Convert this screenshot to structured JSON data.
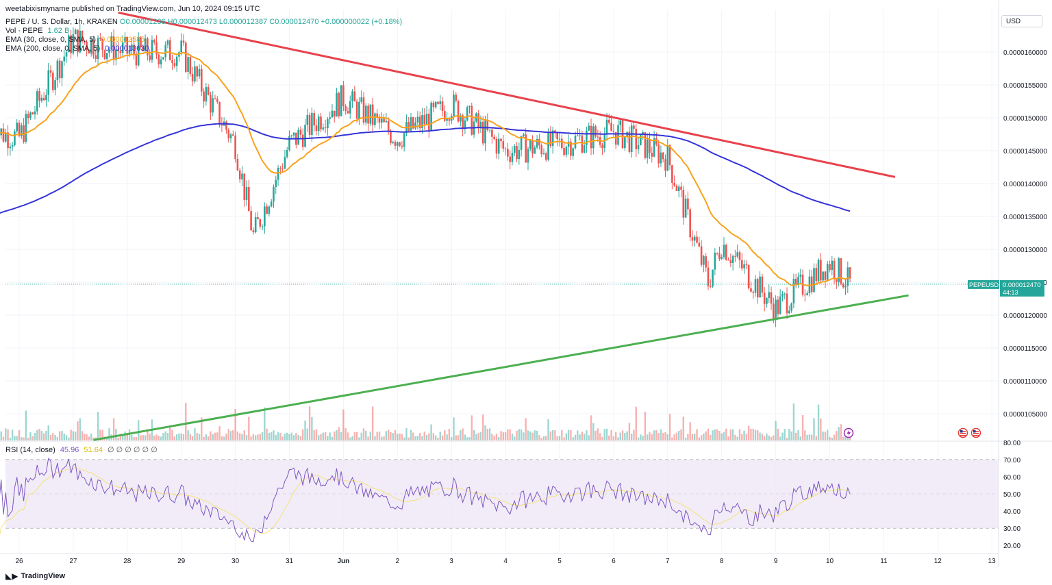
{
  "header": {
    "publisher": "weetabixismyname published on TradingView.com, Jun 10, 2024 09:15 UTC",
    "symbol": "PEPE / U. S. Dollar, 1h, KRAKEN",
    "ohlc": "O0.00001236 H0.000012473 L0.000012387 C0.000012470 +0.000000022 (+0.18%)",
    "vol_label": "Vol · PEPE",
    "vol_value": "1.62 B",
    "ema30_label": "EMA (30, close, 0, SMA, 5)",
    "ema30_value": "0.000012585",
    "ema200_label": "EMA (200, close, 0, SMA, 5)",
    "ema200_value": "0.000013630",
    "rsi_label": "RSI (14, close)",
    "rsi_value": "45.96",
    "rsi_ma_value": "51.64",
    "rsi_extra": "∅ ∅ ∅ ∅ ∅ ∅"
  },
  "axis": {
    "currency": "USD",
    "price_ticks": [
      "0.0000160000",
      "0.0000155000",
      "0.0000150000",
      "0.0000145000",
      "0.0000140000",
      "0.0000135000",
      "0.0000130000",
      "0.0000125000",
      "0.0000120000",
      "0.0000115000",
      "0.0000110000",
      "0.0000105000"
    ],
    "rsi_ticks": [
      "80.00",
      "70.00",
      "60.00",
      "50.00",
      "40.00",
      "30.00",
      "20.00"
    ],
    "x_ticks": [
      "26",
      "27",
      "28",
      "29",
      "30",
      "31",
      "Jun",
      "2",
      "3",
      "4",
      "5",
      "6",
      "7",
      "8",
      "9",
      "10",
      "11",
      "12",
      "13"
    ],
    "symbol_tag": "PEPEUSD",
    "last_price": "0.000012470",
    "countdown": "44:13"
  },
  "footer": {
    "brand": "TradingView"
  },
  "colors": {
    "up": "#26a69a",
    "down": "#ef5350",
    "ema30": "#f7a21b",
    "ema200": "#3434d9",
    "resistance": "#e8424c",
    "support": "#4caf50",
    "rsi": "#7e57c2",
    "rsi_ma": "#f5e17a",
    "rsi_band": "#ede7f6"
  },
  "chart_data": {
    "type": "candlestick",
    "timeframe": "1h",
    "x_range": [
      "May 25",
      "Jun 13"
    ],
    "ylim": [
      1.02e-05,
      1.67e-05
    ],
    "price_key_points": [
      {
        "date": "May 26",
        "close": 1.47e-05
      },
      {
        "date": "May 27",
        "close": 1.62e-05
      },
      {
        "date": "May 28",
        "close": 1.6e-05
      },
      {
        "date": "May 29",
        "close": 1.6e-05
      },
      {
        "date": "May 30",
        "close": 1.46e-05
      },
      {
        "date": "May 30 08h",
        "close": 1.32e-05
      },
      {
        "date": "May 31",
        "close": 1.46e-05
      },
      {
        "date": "Jun 1",
        "close": 1.53e-05
      },
      {
        "date": "Jun 2",
        "close": 1.47e-05
      },
      {
        "date": "Jun 3",
        "close": 1.52e-05
      },
      {
        "date": "Jun 4",
        "close": 1.45e-05
      },
      {
        "date": "Jun 5",
        "close": 1.46e-05
      },
      {
        "date": "Jun 6",
        "close": 1.48e-05
      },
      {
        "date": "Jun 7",
        "close": 1.44e-05
      },
      {
        "date": "Jun 7 18h",
        "close": 1.25e-05
      },
      {
        "date": "Jun 8",
        "close": 1.31e-05
      },
      {
        "date": "Jun 9",
        "close": 1.21e-05
      },
      {
        "date": "Jun 10",
        "close": 1.28e-05
      },
      {
        "date": "Jun 10 09h",
        "close": 1.247e-05
      }
    ],
    "ema30_last": 1.2585e-05,
    "ema200_last": 1.363e-05,
    "trendlines": [
      {
        "name": "resistance",
        "from": {
          "date": "May 27 20h",
          "price": 1.66e-05
        },
        "to": {
          "date": "Jun 11 05h",
          "price": 1.41e-05
        }
      },
      {
        "name": "support",
        "from": {
          "date": "May 27 09h",
          "price": 1.01e-05
        },
        "to": {
          "date": "Jun 11 11h",
          "price": 1.23e-05
        }
      }
    ],
    "volume_last": "1.62 B",
    "rsi": {
      "last": 45.96,
      "ma_last": 51.64,
      "overbought": 70,
      "oversold": 30,
      "ylim": [
        15,
        82
      ]
    }
  }
}
